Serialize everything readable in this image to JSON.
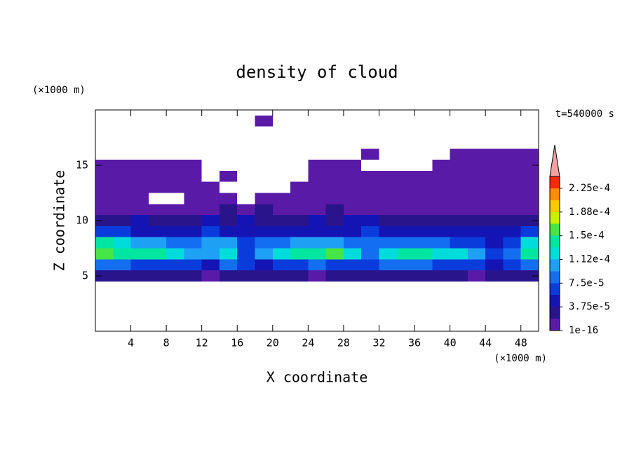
{
  "chart_data": {
    "type": "contour",
    "title": "density of cloud",
    "x_label": "X coordinate",
    "y_label": "Z coordinate",
    "x_unit": "(×1000 m)",
    "y_unit": "(×1000 m)",
    "time_label": "t=540000 s",
    "xlim": [
      0,
      50
    ],
    "ylim": [
      0,
      20
    ],
    "xticks": [
      4,
      8,
      12,
      16,
      20,
      24,
      28,
      32,
      36,
      40,
      44,
      48
    ],
    "yticks": [
      5,
      10,
      15
    ],
    "cell_width": 2,
    "cell_height": 1,
    "x": [
      1,
      3,
      5,
      7,
      9,
      11,
      13,
      15,
      17,
      19,
      21,
      23,
      25,
      27,
      29,
      31,
      33,
      35,
      37,
      39,
      41,
      43,
      45,
      47,
      49
    ],
    "z": [
      5,
      6,
      7,
      8,
      9,
      10,
      11,
      12,
      13,
      14,
      15,
      16,
      19
    ],
    "values": [
      [
        2.5e-05,
        2.5e-05,
        2e-05,
        2e-05,
        2e-05,
        2e-05,
        1.5e-05,
        3e-05,
        2e-05,
        2.5e-05,
        2e-05,
        2e-05,
        1.5e-05,
        2e-05,
        2e-05,
        2.5e-05,
        2e-05,
        2.5e-05,
        2e-05,
        2e-05,
        2e-05,
        1.5e-05,
        2e-05,
        3e-05,
        2.5e-05
      ],
      [
        9e-05,
        8e-05,
        7e-05,
        7e-05,
        6e-05,
        6e-05,
        5e-05,
        9e-05,
        6e-05,
        5e-05,
        7e-05,
        7e-05,
        8e-05,
        7e-05,
        6e-05,
        7e-05,
        8e-05,
        8e-05,
        8e-05,
        7e-05,
        6e-05,
        6e-05,
        4e-05,
        6e-05,
        9e-05
      ],
      [
        0.00015,
        0.000145,
        0.000135,
        0.00014,
        0.00012,
        0.00011,
        0.0001,
        0.00013,
        7e-05,
        0.000105,
        0.00012,
        0.000135,
        0.00014,
        0.00015,
        0.00013,
        9e-05,
        0.00013,
        0.000145,
        0.000145,
        0.00013,
        0.00012,
        0.00011,
        7e-05,
        9e-05,
        0.000135
      ],
      [
        0.00014,
        0.00012,
        0.00011,
        0.00011,
        9e-05,
        9e-05,
        0.0001,
        0.00011,
        6e-05,
        8e-05,
        9e-05,
        0.0001,
        0.00011,
        0.000105,
        9e-05,
        8e-05,
        8e-05,
        9e-05,
        9e-05,
        8e-05,
        7e-05,
        7e-05,
        5e-05,
        7e-05,
        0.00013
      ],
      [
        6e-05,
        6e-05,
        5e-05,
        5e-05,
        5e-05,
        5e-05,
        7e-05,
        5e-05,
        5e-05,
        4e-05,
        4e-05,
        5e-05,
        5e-05,
        5e-05,
        5e-05,
        6e-05,
        5e-05,
        5e-05,
        5e-05,
        5e-05,
        4e-05,
        5e-05,
        5e-05,
        5e-05,
        6e-05
      ],
      [
        3e-05,
        3e-05,
        4e-05,
        3e-05,
        3e-05,
        3e-05,
        4e-05,
        3e-05,
        4e-05,
        3e-05,
        3e-05,
        3e-05,
        4e-05,
        3e-05,
        4e-05,
        4e-05,
        3e-05,
        3e-05,
        3e-05,
        3e-05,
        3e-05,
        3e-05,
        3e-05,
        3e-05,
        3e-05
      ],
      [
        1e-05,
        1.5e-05,
        1e-05,
        1e-05,
        1e-05,
        1.5e-05,
        1e-05,
        2e-05,
        1e-05,
        2e-05,
        1e-05,
        1e-05,
        1.5e-05,
        2e-05,
        1e-05,
        1e-05,
        1e-05,
        1e-05,
        1e-05,
        1e-05,
        1e-05,
        1e-05,
        1e-05,
        1.5e-05,
        1e-05
      ],
      [
        5e-06,
        5e-06,
        5e-06,
        null,
        null,
        5e-06,
        5e-06,
        5e-06,
        null,
        5e-06,
        5e-06,
        5e-06,
        5e-06,
        5e-06,
        5e-06,
        5e-06,
        5e-06,
        5e-06,
        5e-06,
        5e-06,
        5e-06,
        5e-06,
        5e-06,
        5e-06,
        5e-06
      ],
      [
        5e-06,
        5e-06,
        5e-06,
        5e-06,
        5e-06,
        5e-06,
        5e-06,
        null,
        null,
        null,
        null,
        5e-06,
        5e-06,
        5e-06,
        5e-06,
        5e-06,
        5e-06,
        5e-06,
        5e-06,
        5e-06,
        5e-06,
        5e-06,
        5e-06,
        5e-06,
        5e-06
      ],
      [
        5e-06,
        5e-06,
        5e-06,
        5e-06,
        5e-06,
        5e-06,
        null,
        5e-06,
        null,
        null,
        null,
        null,
        5e-06,
        5e-06,
        5e-06,
        5e-06,
        5e-06,
        5e-06,
        5e-06,
        5e-06,
        5e-06,
        5e-06,
        5e-06,
        5e-06,
        5e-06
      ],
      [
        5e-06,
        5e-06,
        5e-06,
        5e-06,
        5e-06,
        5e-06,
        null,
        null,
        null,
        null,
        null,
        null,
        5e-06,
        5e-06,
        5e-06,
        null,
        null,
        null,
        null,
        5e-06,
        5e-06,
        5e-06,
        5e-06,
        5e-06,
        5e-06
      ],
      [
        null,
        null,
        null,
        null,
        null,
        null,
        null,
        null,
        null,
        null,
        null,
        null,
        null,
        null,
        null,
        5e-06,
        null,
        null,
        null,
        null,
        5e-06,
        5e-06,
        5e-06,
        5e-06,
        5e-06
      ],
      [
        null,
        null,
        null,
        null,
        null,
        null,
        null,
        null,
        null,
        5e-06,
        null,
        null,
        null,
        null,
        null,
        null,
        null,
        null,
        null,
        null,
        null,
        null,
        null,
        null,
        null
      ]
    ],
    "levels": [
      1e-16,
      1.875e-05,
      3.75e-05,
      5.625e-05,
      7.5e-05,
      9.375e-05,
      0.0001125,
      0.00013125,
      0.00015,
      0.00016875,
      0.0001875,
      0.00020625,
      0.000225
    ],
    "colors": [
      "#5a1aa8",
      "#2a148c",
      "#1414b4",
      "#0a3cdc",
      "#146ef0",
      "#1ea0f5",
      "#00dcdc",
      "#00e6a0",
      "#46e646",
      "#c8f000",
      "#ffc800",
      "#ff8c00",
      "#ff2800"
    ],
    "over_color": "#f4a0a0",
    "clim": [
      1e-16,
      0.00024375
    ],
    "cticks": [
      {
        "value": 1e-16,
        "label": "1e-16"
      },
      {
        "value": 3.75e-05,
        "label": "3.75e-5"
      },
      {
        "value": 7.5e-05,
        "label": "7.5e-5"
      },
      {
        "value": 0.0001125,
        "label": "1.12e-4"
      },
      {
        "value": 0.00015,
        "label": "1.5e-4"
      },
      {
        "value": 0.0001875,
        "label": "1.88e-4"
      },
      {
        "value": 0.000225,
        "label": "2.25e-4"
      }
    ]
  }
}
